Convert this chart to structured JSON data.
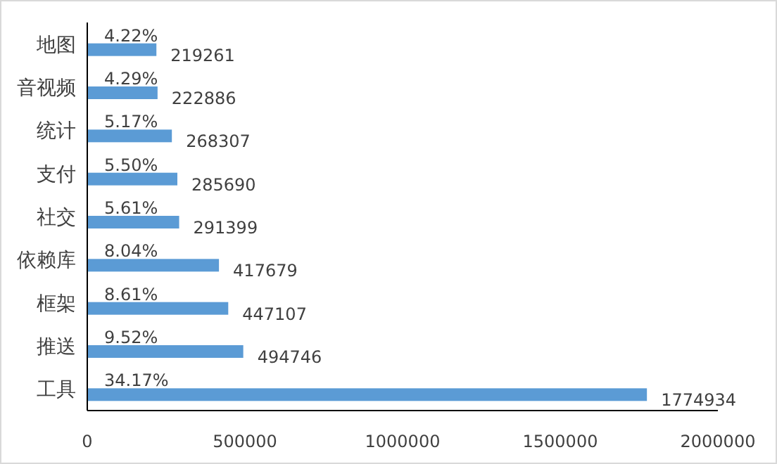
{
  "chart_data": {
    "type": "bar",
    "orientation": "horizontal",
    "categories": [
      "地图",
      "音视频",
      "统计",
      "支付",
      "社交",
      "依赖库",
      "框架",
      "推送",
      "工具"
    ],
    "values": [
      219261,
      222886,
      268307,
      285690,
      291399,
      417679,
      447107,
      494746,
      1774934
    ],
    "color": "#5b9bd5",
    "xlim": [
      0,
      2000000
    ],
    "xticks": [
      0,
      500000,
      1000000,
      1500000,
      2000000
    ],
    "grid": false,
    "data_labels": true,
    "annotations": [
      {
        "text": "4.22%",
        "y": "地图"
      },
      {
        "text": "4.29%",
        "y": "音视频"
      },
      {
        "text": "5.17%",
        "y": "统计"
      },
      {
        "text": "5.50%",
        "y": "支付"
      },
      {
        "text": "5.61%",
        "y": "社交"
      },
      {
        "text": "8.04%",
        "y": "依赖库"
      },
      {
        "text": "8.61%",
        "y": "框架"
      },
      {
        "text": "9.52%",
        "y": "推送"
      },
      {
        "text": "34.17%",
        "y": "工具"
      }
    ]
  }
}
